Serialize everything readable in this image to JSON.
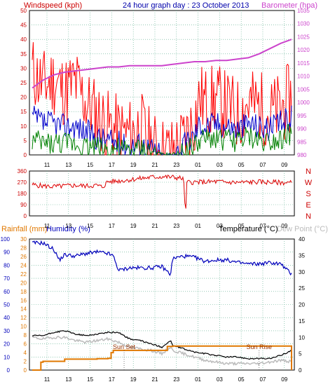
{
  "title": "24 hour graph day : 23 October 2013",
  "panel1": {
    "left_label": "Windspeed (kph)",
    "right_label": "Barometer (hpa)",
    "colors": {
      "wind": "#ff0000",
      "gust_avg": "#0000cc",
      "low": "#008000",
      "baro": "#cc44cc",
      "left_axis": "#cc0000",
      "right_axis": "#cc44cc"
    }
  },
  "panel2": {
    "right_letters": [
      "N",
      "W",
      "S",
      "E",
      "N"
    ],
    "colors": {
      "dir": "#dd0000",
      "axis": "#cc0000"
    }
  },
  "panel3": {
    "rain_label": "Rainfall (mm)",
    "hum_label": "Humidity (%)",
    "temp_label": "Temperature (°C)",
    "dew_label": "Dew Point (°C)",
    "sunset_label": "Sun Set",
    "sunrise_label": "Sun Rise",
    "colors": {
      "rain": "#e07800",
      "hum": "#0000bb",
      "temp": "#000000",
      "dew": "#bbbbbb",
      "rain_axis": "#e07800",
      "hum_axis": "#0000bb"
    }
  },
  "chart_data": [
    {
      "type": "line",
      "title": "24 hour graph day : 23 October 2013",
      "ylabel": "Windspeed (kph)",
      "y2label": "Barometer (hpa)",
      "x_ticks": [
        "11",
        "13",
        "15",
        "17",
        "19",
        "21",
        "23",
        "01",
        "03",
        "05",
        "07",
        "09"
      ],
      "ylim": [
        0,
        50
      ],
      "y_ticks": [
        0,
        5,
        10,
        15,
        20,
        25,
        30,
        35,
        40,
        45,
        50
      ],
      "y2lim": [
        980,
        1035
      ],
      "y2_ticks": [
        980,
        985,
        990,
        995,
        1000,
        1005,
        1010,
        1015,
        1020,
        1025,
        1030,
        1035
      ],
      "grid": true,
      "series": [
        {
          "name": "Windspeed (kph)",
          "axis": "left",
          "x_hours": [
            0,
            1,
            2,
            3,
            4,
            5,
            6,
            7,
            8,
            9,
            10,
            11,
            12,
            13,
            14,
            15,
            15.5,
            16,
            17,
            18,
            19,
            20,
            21,
            22,
            23,
            24
          ],
          "values": [
            29,
            24,
            26,
            22,
            25,
            18,
            14,
            10,
            8,
            7,
            10,
            3,
            1,
            1,
            5,
            12,
            20,
            18,
            19,
            17,
            14,
            18,
            17,
            14,
            16,
            20
          ]
        },
        {
          "axis": "left",
          "x_hours": [
            0,
            1,
            2,
            3,
            4,
            5,
            6,
            7,
            8,
            9,
            10,
            11,
            12,
            13,
            14,
            15,
            15.5,
            16,
            17,
            18,
            19,
            20,
            21,
            22,
            23,
            24
          ],
          "values": [
            13,
            11,
            11,
            10,
            10,
            8,
            6,
            5,
            4,
            3,
            4,
            2,
            0,
            0,
            3,
            7,
            11,
            10,
            11,
            10,
            9,
            11,
            10,
            9,
            11,
            13
          ]
        },
        {
          "axis": "left",
          "x_hours": [
            0,
            1,
            2,
            3,
            4,
            5,
            6,
            7,
            8,
            9,
            10,
            11,
            12,
            13,
            14,
            15,
            15.5,
            16,
            17,
            18,
            19,
            20,
            21,
            22,
            23,
            24
          ],
          "values": [
            5,
            4,
            4,
            4,
            4,
            3,
            3,
            2,
            2,
            1,
            2,
            1,
            0,
            0,
            1,
            3,
            5,
            5,
            6,
            5,
            5,
            6,
            5,
            5,
            6,
            7
          ]
        },
        {
          "name": "Barometer (hpa)",
          "axis": "right",
          "x_hours": [
            0,
            1,
            2,
            3,
            4,
            5,
            6,
            7,
            8,
            9,
            10,
            11,
            12,
            13,
            14,
            15,
            16,
            17,
            18,
            19,
            20,
            21,
            22,
            23,
            24
          ],
          "values": [
            1005.5,
            1008.5,
            1010.5,
            1011.5,
            1012,
            1012.5,
            1013,
            1013.5,
            1013.5,
            1014,
            1014,
            1014,
            1014,
            1014.5,
            1015,
            1015.5,
            1015.5,
            1016,
            1016,
            1016.5,
            1017,
            1018.5,
            1020.5,
            1022.5,
            1024
          ]
        }
      ]
    },
    {
      "type": "scatter",
      "ylabel": "Wind direction",
      "x_ticks": [
        "11",
        "13",
        "15",
        "17",
        "19",
        "21",
        "23",
        "01",
        "03",
        "05",
        "07",
        "09"
      ],
      "ylim": [
        0,
        360
      ],
      "y_ticks": [
        0,
        90,
        180,
        270,
        360
      ],
      "y_right_labels": [
        "N",
        "W",
        "S",
        "E",
        "N"
      ],
      "grid": true,
      "series": [
        {
          "name": "Wind direction",
          "x_hours": [
            0,
            1,
            2,
            3,
            4,
            5,
            6,
            6.5,
            7,
            8,
            9,
            10,
            11,
            12,
            13,
            14,
            14.2,
            14.3,
            15,
            16,
            17,
            18,
            19,
            20,
            21,
            22,
            23,
            24
          ],
          "values": [
            250,
            240,
            235,
            240,
            245,
            240,
            245,
            230,
            275,
            280,
            290,
            300,
            310,
            315,
            310,
            300,
            0,
            270,
            270,
            272,
            275,
            270,
            268,
            270,
            272,
            270,
            268,
            265
          ]
        }
      ]
    },
    {
      "type": "line",
      "xlabel": "",
      "x_ticks": [
        "11",
        "13",
        "15",
        "17",
        "19",
        "21",
        "23",
        "01",
        "03",
        "05",
        "07",
        "09"
      ],
      "ylim_left_outer": [
        0,
        100
      ],
      "y_left_outer_ticks": [
        0,
        10,
        20,
        30,
        40,
        50,
        60,
        70,
        80,
        90,
        100
      ],
      "ylim_left_inner": [
        0,
        30
      ],
      "y_left_inner_ticks": [
        0,
        2,
        4,
        6,
        8,
        10,
        12,
        14,
        16,
        18,
        20,
        22,
        24,
        26,
        28,
        30
      ],
      "ylim_right": [
        0,
        40
      ],
      "y_right_ticks": [
        0,
        5,
        10,
        15,
        20,
        25,
        30,
        35,
        40
      ],
      "grid": true,
      "annotations": [
        {
          "text": "Sun Set",
          "x_hours": 8.5
        },
        {
          "text": "Sun Rise",
          "x_hours": 21
        }
      ],
      "series": [
        {
          "name": "Humidity (%)",
          "axis": "left_outer",
          "x_hours": [
            0,
            1,
            2,
            2.5,
            3,
            4,
            5,
            6,
            7,
            7.5,
            8,
            9,
            10,
            11,
            12,
            12.8,
            13,
            14,
            15,
            16,
            17,
            18,
            19,
            20,
            21,
            22,
            23,
            24
          ],
          "values": [
            97,
            97,
            92,
            84,
            88,
            87,
            89,
            90,
            89,
            87,
            76,
            78,
            78,
            78,
            79,
            73,
            85,
            87,
            86,
            83,
            84,
            84,
            82,
            81,
            81,
            82,
            81,
            73
          ]
        },
        {
          "name": "Temperature (°C)",
          "axis": "right",
          "x_hours": [
            0,
            1,
            2,
            3,
            4,
            5,
            6,
            7,
            8,
            9,
            10,
            11,
            12,
            12.8,
            13,
            14,
            15,
            16,
            17,
            18,
            19,
            20,
            21,
            22,
            23,
            24
          ],
          "values": [
            10.5,
            10.5,
            11.5,
            12,
            11,
            10.5,
            11,
            11.5,
            11.5,
            9.5,
            9,
            8,
            7,
            9,
            7.5,
            6.5,
            5.5,
            5,
            4.5,
            4,
            4,
            3.5,
            3.5,
            3.5,
            4.5,
            6
          ]
        },
        {
          "name": "Dew Point (°C)",
          "axis": "right",
          "x_hours": [
            0,
            1,
            2,
            3,
            4,
            5,
            6,
            7,
            8,
            9,
            10,
            11,
            12,
            12.8,
            13,
            14,
            15,
            16,
            17,
            18,
            19,
            20,
            21,
            22,
            23,
            24
          ],
          "values": [
            10,
            9.5,
            10,
            10,
            9,
            8.5,
            9,
            9.5,
            8.5,
            7,
            6.5,
            6,
            5,
            7,
            6,
            5,
            4,
            3,
            2.5,
            2,
            2,
            2,
            2,
            2.5,
            3,
            2.5
          ]
        },
        {
          "name": "Rainfall (mm)",
          "axis": "left_inner",
          "x_hours": [
            0,
            0.8,
            1,
            3,
            5,
            6,
            7,
            7.3,
            7.5,
            9,
            11,
            12,
            12.5,
            13,
            14,
            16,
            18,
            20,
            22,
            23.8,
            24
          ],
          "values": [
            0,
            1.8,
            2,
            2.5,
            2.5,
            2.6,
            2.7,
            4,
            4.5,
            4.5,
            4.5,
            4.5,
            5.4,
            5.5,
            5.5,
            5.5,
            5.5,
            5.5,
            5.5,
            5.5,
            0
          ]
        }
      ]
    }
  ]
}
